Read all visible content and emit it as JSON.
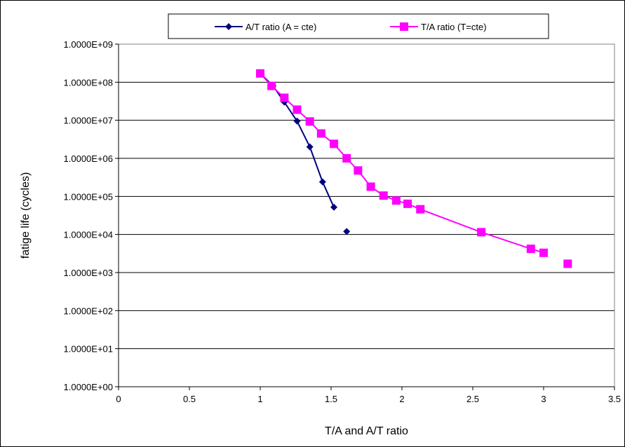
{
  "chart_data": {
    "type": "line",
    "title": "",
    "xlabel": "T/A and A/T ratio",
    "ylabel": "fatige life (cycles)",
    "xlim": [
      0,
      3.5
    ],
    "ylim": [
      1,
      1000000000
    ],
    "y_scale": "log",
    "x_ticks": [
      "0",
      "0.5",
      "1",
      "1.5",
      "2",
      "2.5",
      "3",
      "3.5"
    ],
    "y_ticks": [
      "1.0000E+00",
      "1.0000E+01",
      "1.0000E+02",
      "1.0000E+03",
      "1.0000E+04",
      "1.0000E+05",
      "1.0000E+06",
      "1.0000E+07",
      "1.0000E+08",
      "1.0000E+09"
    ],
    "grid": "horizontal",
    "legend_position": "top",
    "series": [
      {
        "name": "A/T ratio (A = cte)",
        "color": "#000080",
        "marker": "diamond",
        "x": [
          1.0,
          1.09,
          1.17,
          1.26,
          1.35,
          1.44,
          1.52,
          1.61
        ],
        "y": [
          170000000,
          80000000,
          30000000,
          9500000,
          2000000,
          240000,
          52000,
          12000
        ],
        "connected_points": 7
      },
      {
        "name": "T/A ratio (T=cte)",
        "color": "#FF00FF",
        "marker": "square",
        "x": [
          1.0,
          1.08,
          1.17,
          1.26,
          1.35,
          1.43,
          1.52,
          1.61,
          1.69,
          1.78,
          1.87,
          1.96,
          2.04,
          2.13,
          2.56,
          2.91,
          3.0,
          3.17
        ],
        "y": [
          170000000,
          80000000,
          39000000,
          19000000,
          9300000,
          4500000,
          2400000,
          1000000,
          480000,
          180000,
          105000,
          78000,
          64000,
          46000,
          11500,
          4200,
          3300,
          1700
        ],
        "connected_points": 17
      }
    ]
  }
}
